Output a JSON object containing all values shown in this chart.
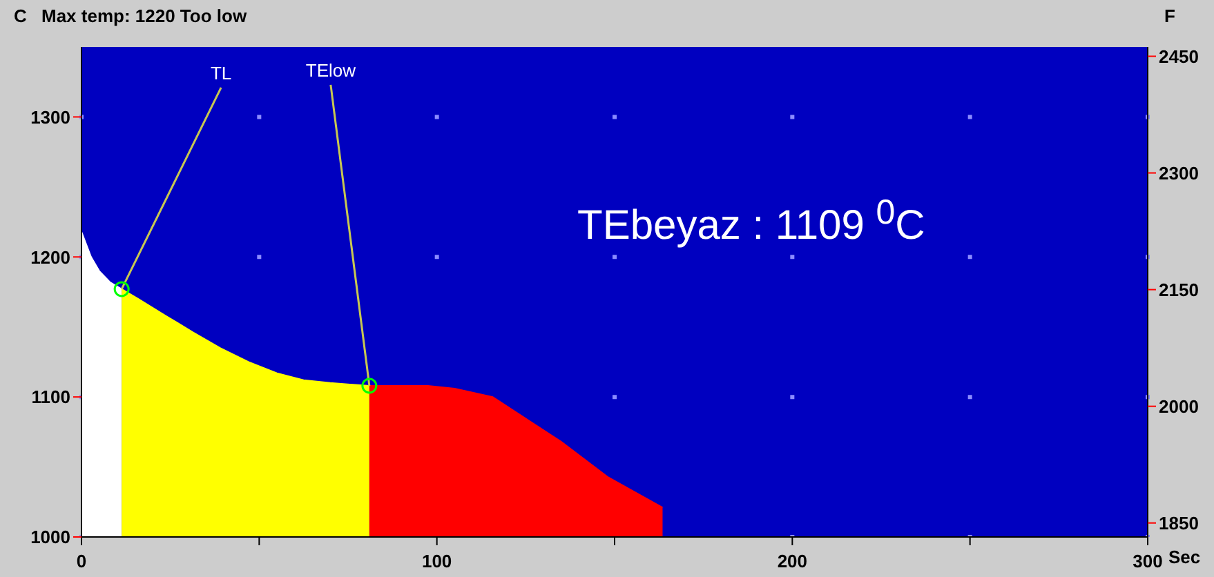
{
  "chart_data": {
    "type": "area",
    "title": "Max temp: 1220 Too low",
    "ylabel": "C",
    "y2label": "F",
    "xlabel": "Sec",
    "series": [
      {
        "color": "#ffffff",
        "x": [
          0,
          1.2,
          2.7,
          5,
          8,
          11.3
        ],
        "values": [
          1218,
          1210,
          1200,
          1190,
          1182,
          1177
        ]
      },
      {
        "color": "#ffff00",
        "x": [
          11.3,
          16,
          23.7,
          31.5,
          39,
          47,
          55,
          62.5,
          70,
          81
        ],
        "values": [
          1177,
          1170,
          1158,
          1146,
          1135,
          1125,
          1117,
          1112,
          1110,
          1108
        ]
      },
      {
        "color": "#ff0000",
        "x": [
          81,
          90,
          97.5,
          105,
          115.7,
          135,
          148,
          163.5
        ],
        "values": [
          1108,
          1108,
          1108,
          1106,
          1100,
          1068,
          1043,
          1021
        ]
      }
    ],
    "annotations": [
      {
        "text": "TL",
        "x": 11.3,
        "y": 1177
      },
      {
        "text": "TElow",
        "x": 81,
        "y": 1108
      },
      "TEbeyaz : 1109 $^{0}$C"
    ],
    "xlim": [
      0,
      300
    ],
    "xticks": [
      0,
      {
        "value": 50,
        "label": null
      },
      100,
      {
        "value": 150,
        "label": null
      },
      200,
      {
        "value": 250,
        "label": null
      },
      300
    ],
    "ylim": [
      1000,
      1350
    ],
    "yticks": [
      1000,
      1100,
      1200,
      1300
    ],
    "y2lim": [
      1832,
      2462
    ],
    "y2ticks": [
      1850,
      2000,
      2150,
      2300,
      2450
    ],
    "grid": "x"
  }
}
